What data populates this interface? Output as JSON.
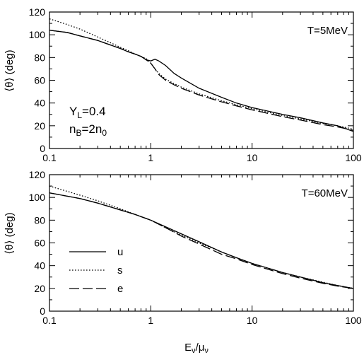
{
  "figure": {
    "xlabel_main": "E",
    "xlabel_sub1": "ν",
    "xlabel_sep": "/μ",
    "xlabel_sub2": "ν",
    "ylabel": "⟨θ⟩ (deg)"
  },
  "chart_data": [
    {
      "type": "line",
      "title": "",
      "xlabel": "Eν/μν",
      "ylabel": "⟨θ⟩ (deg)",
      "xscale": "log",
      "xlim": [
        0.1,
        100
      ],
      "ylim": [
        0,
        120
      ],
      "xticks": [
        "0.1",
        "1",
        "10",
        "100"
      ],
      "yticks": [
        "0",
        "20",
        "40",
        "60",
        "80",
        "100",
        "120"
      ],
      "grid": false,
      "annotations": {
        "temperature": "T=5MeV",
        "YL": {
          "main": "Y",
          "sub": "L",
          "rest": "=0.4"
        },
        "nB": {
          "main": "n",
          "sub": "B",
          "rest": "=2n",
          "sub2": "0"
        }
      },
      "series": [
        {
          "style": "solid",
          "x": [
            0.1,
            0.15,
            0.2,
            0.3,
            0.4,
            0.5,
            0.6,
            0.7,
            0.8,
            0.9,
            1.0,
            1.1,
            1.2,
            1.4,
            1.7,
            2.0,
            3.0,
            5.0,
            7.0,
            10.0,
            20.0,
            30.0,
            50.0,
            70.0,
            100.0
          ],
          "y": [
            104,
            102,
            99,
            95,
            91,
            88,
            85,
            83,
            81,
            78,
            77,
            78.5,
            77,
            73,
            66,
            62,
            53,
            45,
            40,
            36,
            30,
            27,
            22.5,
            20,
            15
          ]
        },
        {
          "style": "dotted",
          "x": [
            0.1,
            0.15,
            0.2,
            0.3,
            0.4,
            0.5,
            0.6,
            0.7,
            0.8,
            0.9,
            1.0,
            1.1,
            1.2,
            1.4,
            1.7,
            2.0,
            3.0,
            5.0,
            7.0,
            10.0,
            20.0,
            30.0,
            50.0,
            70.0,
            100.0
          ],
          "y": [
            114,
            109,
            105,
            98,
            93,
            89,
            86,
            83,
            81,
            79,
            75,
            70,
            66,
            61,
            57,
            54,
            48,
            42,
            38.5,
            35,
            29,
            26,
            22,
            20,
            17
          ]
        },
        {
          "style": "dashed",
          "x": [
            0.1,
            0.15,
            0.2,
            0.3,
            0.4,
            0.5,
            0.6,
            0.7,
            0.8,
            0.9,
            1.0,
            1.1,
            1.2,
            1.4,
            1.7,
            2.0,
            3.0,
            5.0,
            7.0,
            10.0,
            20.0,
            30.0,
            50.0,
            70.0,
            100.0
          ],
          "y": [
            104,
            102,
            99,
            95,
            91,
            88,
            85,
            83,
            81,
            78,
            75,
            70,
            65,
            60,
            56,
            53,
            47,
            41,
            37.5,
            34,
            28,
            25,
            21,
            19,
            16
          ]
        }
      ]
    },
    {
      "type": "line",
      "title": "",
      "xlabel": "Eν/μν",
      "ylabel": "⟨θ⟩ (deg)",
      "xscale": "log",
      "xlim": [
        0.1,
        100
      ],
      "ylim": [
        0,
        120
      ],
      "xticks": [
        "0.1",
        "1",
        "10",
        "100"
      ],
      "yticks": [
        "0",
        "20",
        "40",
        "60",
        "80",
        "100",
        "120"
      ],
      "grid": false,
      "annotations": {
        "temperature": "T=60MeV"
      },
      "legend": {
        "placement": "lower-left",
        "entries": [
          {
            "label": "u",
            "style": "solid"
          },
          {
            "label": "s",
            "style": "dotted"
          },
          {
            "label": "e",
            "style": "dashed"
          }
        ]
      },
      "series": [
        {
          "style": "solid",
          "x": [
            0.1,
            0.2,
            0.3,
            0.5,
            0.7,
            1.0,
            1.5,
            2.0,
            3.0,
            5.0,
            7.0,
            10.0,
            20.0,
            30.0,
            50.0,
            70.0,
            100.0
          ],
          "y": [
            104,
            99,
            95,
            89,
            85,
            80,
            73,
            68,
            61,
            52,
            47,
            42,
            34,
            30,
            25,
            22.5,
            20
          ]
        },
        {
          "style": "dotted",
          "x": [
            0.1,
            0.2,
            0.3,
            0.5,
            0.7,
            1.0,
            1.5,
            2.0,
            3.0,
            5.0,
            7.0,
            10.0,
            20.0,
            30.0,
            50.0,
            70.0,
            100.0
          ],
          "y": [
            110,
            102,
            97,
            90,
            85,
            80,
            72,
            67,
            60,
            52,
            47,
            42,
            34,
            30,
            25.5,
            22.5,
            20
          ]
        },
        {
          "style": "dashed",
          "x": [
            0.1,
            0.2,
            0.3,
            0.5,
            0.7,
            1.0,
            1.5,
            2.0,
            3.0,
            5.0,
            7.0,
            10.0,
            20.0,
            30.0,
            50.0,
            70.0,
            100.0
          ],
          "y": [
            104,
            99,
            95,
            89,
            85,
            80,
            72,
            66,
            59,
            50,
            46,
            41,
            33,
            29,
            24.5,
            22,
            20
          ]
        }
      ]
    }
  ]
}
